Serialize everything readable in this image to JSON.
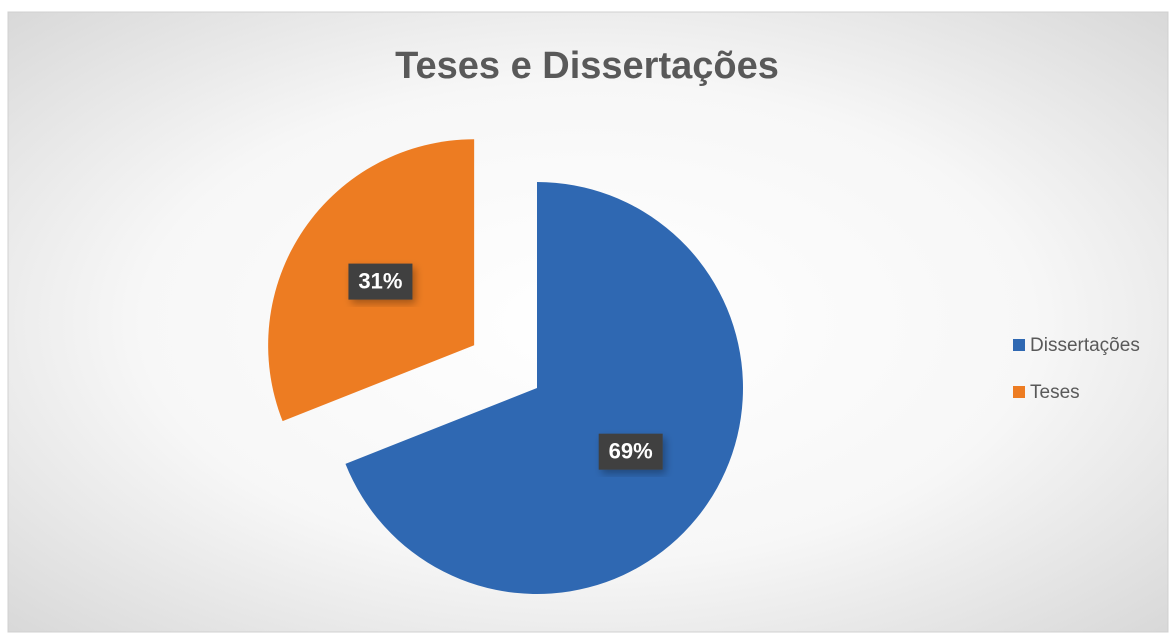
{
  "chart_data": {
    "type": "pie",
    "title": "Teses e Dissertações",
    "categories": [
      "Dissertações",
      "Teses"
    ],
    "values": [
      69,
      31
    ],
    "value_labels": [
      "69%",
      "31%"
    ],
    "colors": [
      "#2f68b2",
      "#ed7c22"
    ],
    "exploded": [
      false,
      true
    ],
    "legend": "right"
  }
}
